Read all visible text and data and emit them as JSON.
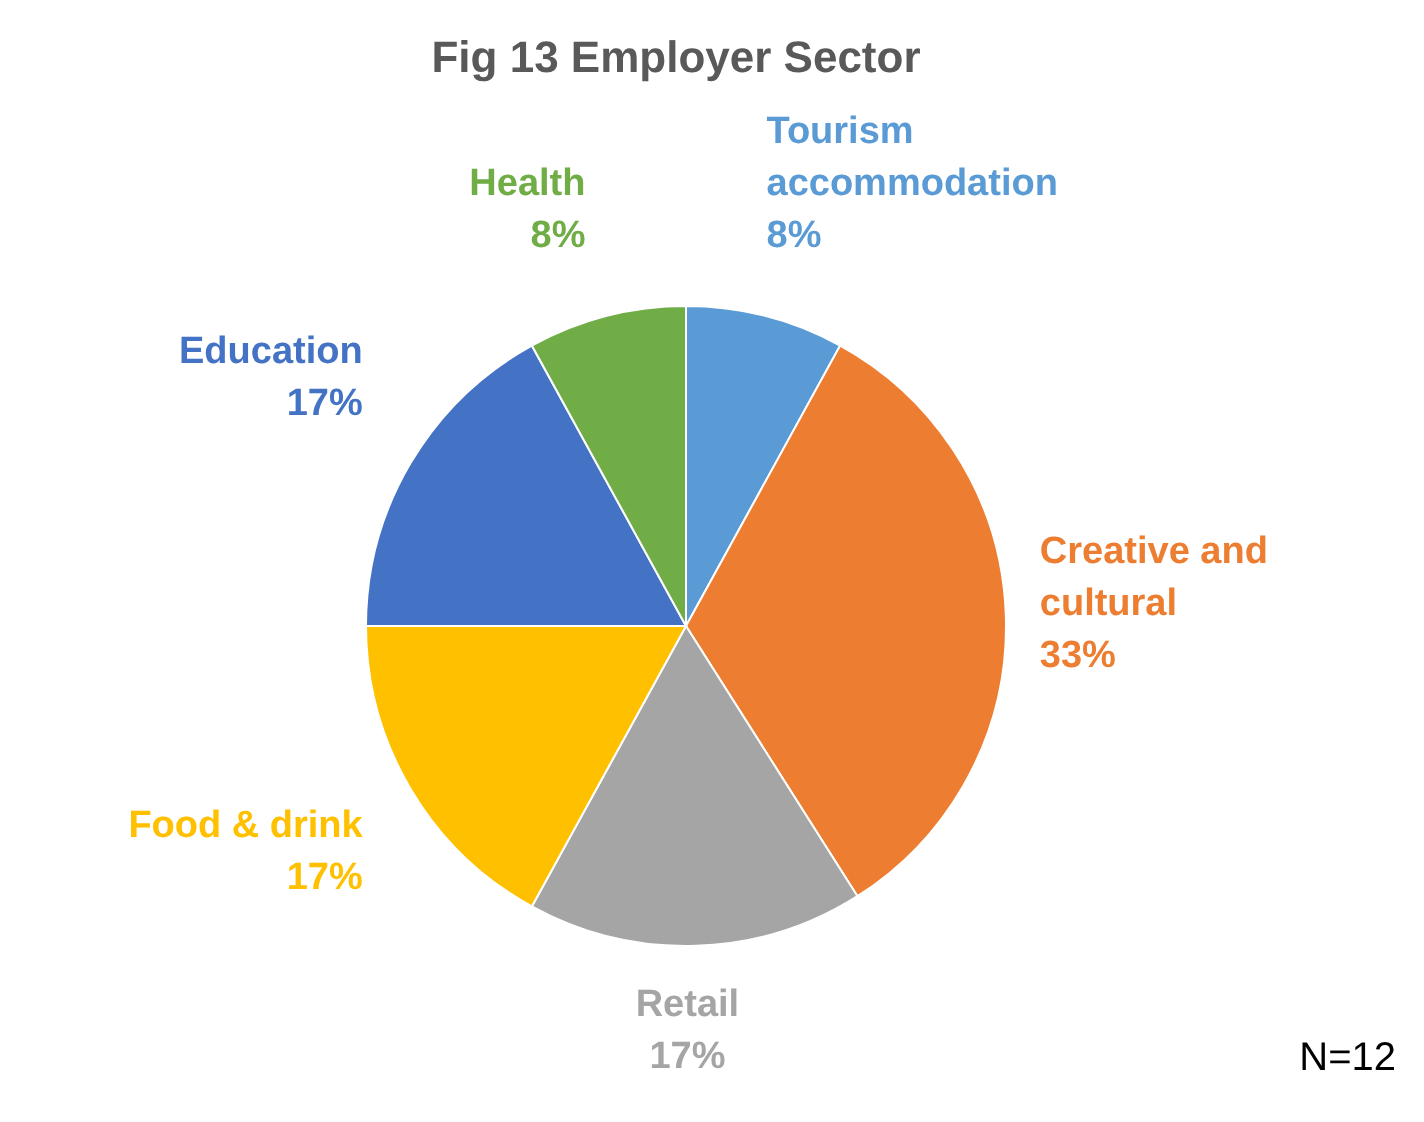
{
  "chart_data": {
    "type": "pie",
    "title": "Fig 13 Employer Sector",
    "categories": [
      "Tourism accommodation",
      "Creative and cultural",
      "Retail",
      "Food & drink",
      "Education",
      "Health"
    ],
    "values": [
      8,
      33,
      17,
      17,
      17,
      8
    ],
    "value_labels": [
      "8%",
      "33%",
      "17%",
      "17%",
      "17%",
      "8%"
    ],
    "colors": [
      "#5b9bd5",
      "#ed7d31",
      "#a5a5a5",
      "#ffc000",
      "#4472c4",
      "#70ad47"
    ],
    "annotations": [
      "N=12"
    ]
  }
}
